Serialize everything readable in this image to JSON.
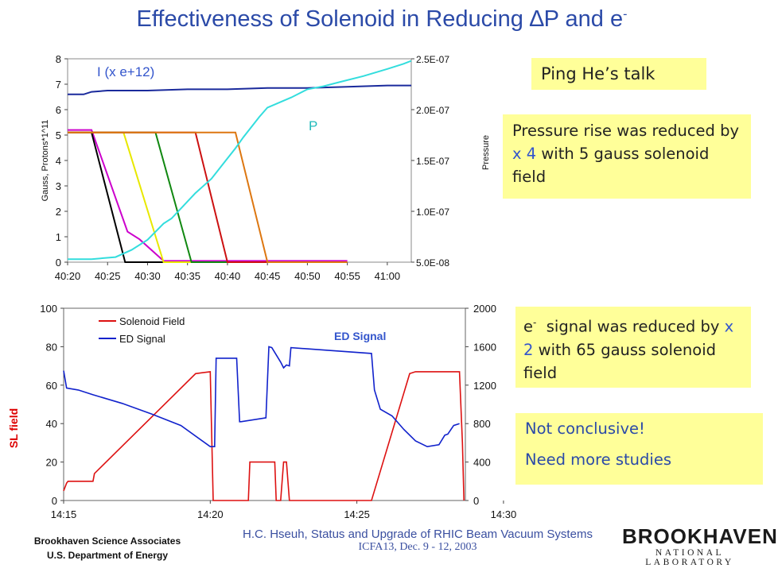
{
  "title_main": "Effectiveness of Solenoid in Reducing ",
  "title_delta": "∆",
  "title_p": "P and e",
  "title_sup": "-",
  "boxes": {
    "ping": "Ping He’s talk",
    "pressure_a": "Pressure rise was reduced by ",
    "pressure_x": "x 4",
    "pressure_b": " with 5 gauss solenoid field",
    "e_e": "e",
    "e_sup": "-",
    "e_a": "  signal was reduced by ",
    "e_x": "x 2",
    "e_b": " with 65 gauss solenoid field",
    "nc1": "Not conclusive!",
    "nc2": "Need more studies"
  },
  "footer": {
    "org1": "Brookhaven Science Associates",
    "org2": "U.S. Department of Energy",
    "talk": "H.C. Hseuh, Status and Upgrade of RHIC Beam Vacuum Systems",
    "conf": "ICFA13, Dec. 9 - 12, 2003",
    "logo_big": "BROOKHAVEN",
    "logo_small": "NATIONAL LABORATORY"
  },
  "chart_data": [
    {
      "type": "line",
      "ylabel": "Gauss, Protons*1^11",
      "y2label": "Pressure",
      "x_tick_labels": [
        "40:20",
        "40:25",
        "40:30",
        "40:35",
        "40:40",
        "40:45",
        "40:50",
        "40:55",
        "41:00"
      ],
      "ylim": [
        0,
        8
      ],
      "y_ticks": [
        0,
        1,
        2,
        3,
        4,
        5,
        6,
        7,
        8
      ],
      "y2lim": [
        5e-08,
        2.5e-07
      ],
      "y2_tick_labels": [
        "5.0E-08",
        "1.0E-07",
        "1.5E-07",
        "2.0E-07",
        "2.5E-07"
      ],
      "annotations": [
        {
          "text": "I (x e+12)",
          "color": "#3355cc"
        },
        {
          "text": "P",
          "color": "#22bbbb"
        }
      ],
      "series": [
        {
          "color": "#1a2a9c",
          "axis": "left",
          "x": [
            0,
            2,
            3,
            5,
            10,
            15,
            20,
            25,
            30,
            35,
            40,
            43
          ],
          "y": [
            6.6,
            6.6,
            6.7,
            6.75,
            6.75,
            6.8,
            6.8,
            6.85,
            6.85,
            6.9,
            6.95,
            6.95
          ]
        },
        {
          "color": "#cc00cc",
          "axis": "left",
          "x": [
            0,
            3,
            7.5,
            9,
            12,
            15,
            25,
            35
          ],
          "y": [
            5.2,
            5.2,
            1.2,
            0.9,
            0.05,
            0.05,
            0.05,
            0.05
          ]
        },
        {
          "color": "#000000",
          "axis": "left",
          "x": [
            0,
            3,
            7.2,
            15
          ],
          "y": [
            5.1,
            5.1,
            0,
            0
          ]
        },
        {
          "color": "#e8e800",
          "axis": "left",
          "x": [
            0,
            7,
            12,
            20
          ],
          "y": [
            5.1,
            5.1,
            0,
            0
          ]
        },
        {
          "color": "#118811",
          "axis": "left",
          "x": [
            0,
            11,
            15.5,
            25
          ],
          "y": [
            5.1,
            5.1,
            0,
            0
          ]
        },
        {
          "color": "#cc1111",
          "axis": "left",
          "x": [
            0,
            16,
            20,
            30
          ],
          "y": [
            5.1,
            5.1,
            0,
            0
          ]
        },
        {
          "color": "#dd7711",
          "axis": "left",
          "x": [
            0,
            21,
            25,
            35
          ],
          "y": [
            5.1,
            5.1,
            0,
            0
          ]
        },
        {
          "color": "#33dddd",
          "axis": "right",
          "x": [
            0,
            3,
            6,
            8,
            10,
            12,
            13,
            16,
            18,
            20,
            21,
            22,
            24,
            25,
            28,
            30,
            32,
            34,
            37,
            40,
            42,
            43
          ],
          "y": [
            5.3e-08,
            5.3e-08,
            5.5e-08,
            6.2e-08,
            7.2e-08,
            8.8e-08,
            9.3e-08,
            1.18e-07,
            1.32e-07,
            1.52e-07,
            1.62e-07,
            1.73e-07,
            1.93e-07,
            2.02e-07,
            2.12e-07,
            2.2e-07,
            2.23e-07,
            2.27e-07,
            2.33e-07,
            2.4e-07,
            2.45e-07,
            2.48e-07
          ]
        }
      ]
    },
    {
      "type": "line",
      "ylabel": "SL field",
      "y_left_label_color": "#dd0000",
      "x_tick_labels": [
        "14:15",
        "14:20",
        "14:25",
        "14:30"
      ],
      "ylim": [
        0,
        100
      ],
      "y_ticks": [
        0,
        20,
        40,
        60,
        80,
        100
      ],
      "y2lim": [
        0,
        2000
      ],
      "y2_ticks": [
        0,
        400,
        800,
        1200,
        1600,
        2000
      ],
      "annotations": [
        {
          "text": "ED Signal",
          "color": "#3355cc"
        }
      ],
      "legend": [
        {
          "name": "Solenoid Field",
          "color": "#dd1111"
        },
        {
          "name": "ED Signal",
          "color": "#1122cc"
        }
      ],
      "series": [
        {
          "name": "Solenoid Field",
          "color": "#dd1111",
          "axis": "left",
          "x": [
            0,
            0.1,
            0.15,
            1.0,
            1.05,
            4.5,
            5.0,
            5.1,
            5.2,
            6.2,
            6.3,
            6.35,
            7.2,
            7.25,
            7.4,
            7.5,
            7.6,
            7.7,
            10.5,
            11.8,
            12.0,
            13.5,
            13.6,
            13.65
          ],
          "y": [
            5,
            9,
            10,
            10,
            14,
            66,
            67,
            0,
            0,
            0,
            0,
            20,
            20,
            0,
            0,
            20,
            20,
            0,
            0,
            66,
            67,
            67,
            30,
            0
          ]
        },
        {
          "name": "ED Signal",
          "color": "#1122cc",
          "axis": "right",
          "x": [
            0,
            0.1,
            0.5,
            1,
            2,
            3,
            4,
            5,
            5.15,
            5.2,
            5.9,
            6.0,
            6.05,
            6.9,
            7.0,
            7.1,
            7.4,
            7.5,
            7.6,
            7.7,
            7.75,
            10.5,
            10.6,
            10.8,
            11.2,
            11.6,
            12,
            12.4,
            12.8,
            13.0,
            13.1,
            13.3,
            13.5
          ],
          "y": [
            1350,
            1170,
            1150,
            1100,
            1010,
            900,
            780,
            560,
            560,
            1480,
            1480,
            820,
            820,
            860,
            1600,
            1590,
            1440,
            1380,
            1410,
            1400,
            1590,
            1530,
            1150,
            950,
            880,
            740,
            620,
            560,
            580,
            680,
            690,
            780,
            800
          ]
        }
      ]
    }
  ]
}
